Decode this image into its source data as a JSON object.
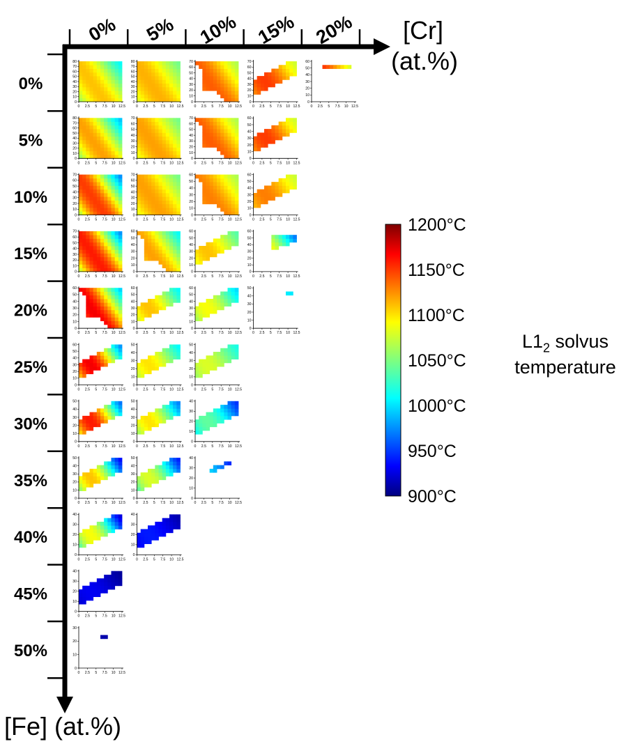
{
  "chart_data": {
    "type": "heatmap",
    "description_axes": {
      "column_axis_label": "[Cr]",
      "column_axis_unit": "(at.%)",
      "row_axis_label": "[Fe] (at.%)"
    },
    "col_labels": [
      "0%",
      "5%",
      "10%",
      "15%",
      "20%"
    ],
    "row_labels": [
      "0%",
      "5%",
      "10%",
      "15%",
      "20%",
      "25%",
      "30%",
      "35%",
      "40%",
      "45%",
      "50%"
    ],
    "subplot_x_ticks": [
      "0",
      "2.5",
      "5",
      "7.5",
      "10",
      "12.5"
    ],
    "subplot_x_range": [
      0,
      12.5
    ],
    "colorbar": {
      "label_line1": "L1",
      "label_sub": "2",
      "label_line1_rest": " solvus",
      "label_line2": "temperature",
      "min": 900,
      "max": 1200,
      "ticks": [
        "1200°C",
        "1150°C",
        "1100°C",
        "1050°C",
        "1000°C",
        "950°C",
        "900°C"
      ],
      "colormap": "jet"
    },
    "panels": [
      {
        "row": 0,
        "col": 0,
        "ymax": 80,
        "yticks": [
          0,
          10,
          20,
          30,
          40,
          50,
          60,
          70,
          80
        ],
        "region": "full",
        "tmin": 1000,
        "tmax": 1110
      },
      {
        "row": 0,
        "col": 1,
        "ymax": 80,
        "yticks": [
          0,
          10,
          20,
          30,
          40,
          50,
          60,
          70,
          80
        ],
        "region": "full",
        "tmin": 1040,
        "tmax": 1115
      },
      {
        "row": 0,
        "col": 2,
        "ymax": 70,
        "yticks": [
          0,
          10,
          20,
          30,
          40,
          50,
          60,
          70
        ],
        "region": "upper",
        "tmin": 1060,
        "tmax": 1140
      },
      {
        "row": 0,
        "col": 3,
        "ymax": 70,
        "yticks": [
          0,
          10,
          20,
          30,
          40,
          50,
          60,
          70
        ],
        "region": "band",
        "tmin": 1070,
        "tmax": 1150
      },
      {
        "row": 0,
        "col": 4,
        "ymax": 60,
        "yticks": [
          0,
          10,
          20,
          30,
          40,
          50,
          60
        ],
        "region": "line",
        "tmin": 1060,
        "tmax": 1160
      },
      {
        "row": 1,
        "col": 0,
        "ymax": 80,
        "yticks": [
          0,
          10,
          20,
          30,
          40,
          50,
          60,
          70,
          80
        ],
        "region": "full",
        "tmin": 980,
        "tmax": 1120
      },
      {
        "row": 1,
        "col": 1,
        "ymax": 70,
        "yticks": [
          0,
          10,
          20,
          30,
          40,
          50,
          60,
          70
        ],
        "region": "full",
        "tmin": 1040,
        "tmax": 1120
      },
      {
        "row": 1,
        "col": 2,
        "ymax": 70,
        "yticks": [
          0,
          10,
          20,
          30,
          40,
          50,
          60,
          70
        ],
        "region": "upper",
        "tmin": 1060,
        "tmax": 1140
      },
      {
        "row": 1,
        "col": 3,
        "ymax": 60,
        "yticks": [
          0,
          10,
          20,
          30,
          40,
          50,
          60
        ],
        "region": "band",
        "tmin": 1070,
        "tmax": 1150
      },
      {
        "row": 2,
        "col": 0,
        "ymax": 70,
        "yticks": [
          0,
          10,
          20,
          30,
          40,
          50,
          60,
          70
        ],
        "region": "full",
        "tmin": 960,
        "tmax": 1150
      },
      {
        "row": 2,
        "col": 1,
        "ymax": 70,
        "yticks": [
          0,
          10,
          20,
          30,
          40,
          50,
          60,
          70
        ],
        "region": "full",
        "tmin": 1040,
        "tmax": 1120
      },
      {
        "row": 2,
        "col": 2,
        "ymax": 60,
        "yticks": [
          0,
          10,
          20,
          30,
          40,
          50,
          60
        ],
        "region": "upper",
        "tmin": 1060,
        "tmax": 1130
      },
      {
        "row": 2,
        "col": 3,
        "ymax": 60,
        "yticks": [
          0,
          10,
          20,
          30,
          40,
          50,
          60
        ],
        "region": "band",
        "tmin": 1070,
        "tmax": 1130
      },
      {
        "row": 3,
        "col": 0,
        "ymax": 70,
        "yticks": [
          0,
          10,
          20,
          30,
          40,
          50,
          60,
          70
        ],
        "region": "full",
        "tmin": 960,
        "tmax": 1160
      },
      {
        "row": 3,
        "col": 1,
        "ymax": 60,
        "yticks": [
          0,
          10,
          20,
          30,
          40,
          50,
          60
        ],
        "region": "upper",
        "tmin": 1000,
        "tmax": 1120
      },
      {
        "row": 3,
        "col": 2,
        "ymax": 60,
        "yticks": [
          0,
          10,
          20,
          30,
          40,
          50,
          60
        ],
        "region": "band",
        "tmin": 1030,
        "tmax": 1110
      },
      {
        "row": 3,
        "col": 3,
        "ymax": 60,
        "yticks": [
          0,
          10,
          20,
          30,
          40,
          50,
          60
        ],
        "region": "small",
        "tmin": 950,
        "tmax": 1100
      },
      {
        "row": 4,
        "col": 0,
        "ymax": 60,
        "yticks": [
          0,
          10,
          20,
          30,
          40,
          50,
          60
        ],
        "region": "upper",
        "tmin": 980,
        "tmax": 1170
      },
      {
        "row": 4,
        "col": 1,
        "ymax": 60,
        "yticks": [
          0,
          10,
          20,
          30,
          40,
          50,
          60
        ],
        "region": "band",
        "tmin": 1000,
        "tmax": 1110
      },
      {
        "row": 4,
        "col": 2,
        "ymax": 60,
        "yticks": [
          0,
          10,
          20,
          30,
          40,
          50,
          60
        ],
        "region": "band",
        "tmin": 990,
        "tmax": 1090
      },
      {
        "row": 4,
        "col": 3,
        "ymax": 50,
        "yticks": [
          0,
          10,
          20,
          30,
          40,
          50
        ],
        "region": "dots",
        "tmin": 1000,
        "tmax": 1010
      },
      {
        "row": 5,
        "col": 0,
        "ymax": 60,
        "yticks": [
          0,
          10,
          20,
          30,
          40,
          50,
          60
        ],
        "region": "band",
        "tmin": 960,
        "tmax": 1170
      },
      {
        "row": 5,
        "col": 1,
        "ymax": 50,
        "yticks": [
          0,
          10,
          20,
          30,
          40,
          50
        ],
        "region": "band",
        "tmin": 1000,
        "tmax": 1100
      },
      {
        "row": 5,
        "col": 2,
        "ymax": 50,
        "yticks": [
          0,
          10,
          20,
          30,
          40,
          50
        ],
        "region": "band",
        "tmin": 1010,
        "tmax": 1080
      },
      {
        "row": 6,
        "col": 0,
        "ymax": 50,
        "yticks": [
          0,
          10,
          20,
          30,
          40,
          50
        ],
        "region": "band",
        "tmin": 950,
        "tmax": 1160
      },
      {
        "row": 6,
        "col": 1,
        "ymax": 50,
        "yticks": [
          0,
          10,
          20,
          30,
          40,
          50
        ],
        "region": "band",
        "tmin": 960,
        "tmax": 1100
      },
      {
        "row": 6,
        "col": 2,
        "ymax": 40,
        "yticks": [
          0,
          10,
          20,
          30,
          40
        ],
        "region": "band",
        "tmin": 940,
        "tmax": 1040
      },
      {
        "row": 7,
        "col": 0,
        "ymax": 50,
        "yticks": [
          0,
          10,
          20,
          30,
          40,
          50
        ],
        "region": "band",
        "tmin": 920,
        "tmax": 1110
      },
      {
        "row": 7,
        "col": 1,
        "ymax": 50,
        "yticks": [
          0,
          10,
          20,
          30,
          40,
          50
        ],
        "region": "band",
        "tmin": 930,
        "tmax": 1080
      },
      {
        "row": 7,
        "col": 2,
        "ymax": 40,
        "yticks": [
          0,
          10,
          20,
          30,
          40
        ],
        "region": "thin",
        "tmin": 920,
        "tmax": 1000
      },
      {
        "row": 8,
        "col": 0,
        "ymax": 40,
        "yticks": [
          0,
          10,
          20,
          30,
          40
        ],
        "region": "band",
        "tmin": 910,
        "tmax": 1090
      },
      {
        "row": 8,
        "col": 1,
        "ymax": 40,
        "yticks": [
          0,
          10,
          20,
          30,
          40
        ],
        "region": "band",
        "tmin": 910,
        "tmax": 940
      },
      {
        "row": 9,
        "col": 0,
        "ymax": 40,
        "yticks": [
          0,
          10,
          20,
          30,
          40
        ],
        "region": "band",
        "tmin": 905,
        "tmax": 930
      },
      {
        "row": 10,
        "col": 0,
        "ymax": 30,
        "yticks": [
          0,
          10,
          20,
          30
        ],
        "region": "tiny",
        "tmin": 905,
        "tmax": 915
      }
    ]
  }
}
